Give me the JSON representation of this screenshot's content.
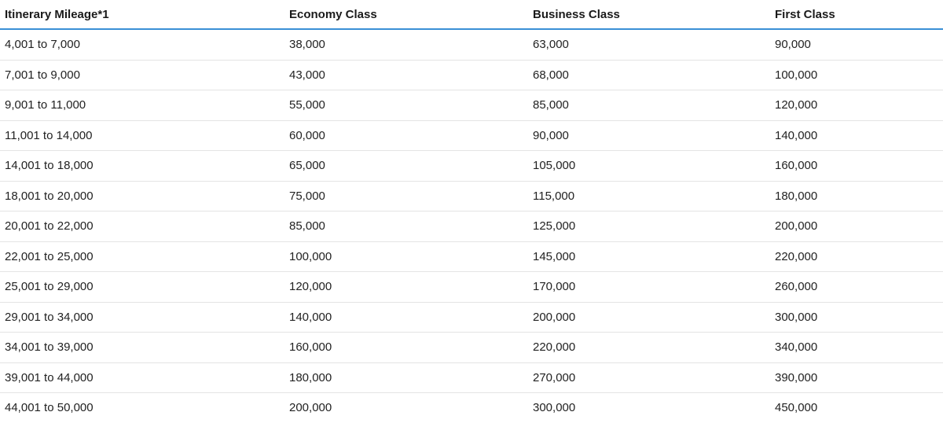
{
  "table": {
    "headers": [
      "Itinerary Mileage*1",
      "Economy Class",
      "Business Class",
      "First Class"
    ],
    "rows": [
      [
        "4,001 to 7,000",
        "38,000",
        "63,000",
        "90,000"
      ],
      [
        "7,001 to 9,000",
        "43,000",
        "68,000",
        "100,000"
      ],
      [
        "9,001 to 11,000",
        "55,000",
        "85,000",
        "120,000"
      ],
      [
        "11,001 to 14,000",
        "60,000",
        "90,000",
        "140,000"
      ],
      [
        "14,001 to 18,000",
        "65,000",
        "105,000",
        "160,000"
      ],
      [
        "18,001 to 20,000",
        "75,000",
        "115,000",
        "180,000"
      ],
      [
        "20,001 to 22,000",
        "85,000",
        "125,000",
        "200,000"
      ],
      [
        "22,001 to 25,000",
        "100,000",
        "145,000",
        "220,000"
      ],
      [
        "25,001 to 29,000",
        "120,000",
        "170,000",
        "260,000"
      ],
      [
        "29,001 to 34,000",
        "140,000",
        "200,000",
        "300,000"
      ],
      [
        "34,001 to 39,000",
        "160,000",
        "220,000",
        "340,000"
      ],
      [
        "39,001 to 44,000",
        "180,000",
        "270,000",
        "390,000"
      ],
      [
        "44,001 to 50,000",
        "200,000",
        "300,000",
        "450,000"
      ]
    ]
  },
  "colors": {
    "header_rule": "#3a8fd6",
    "row_divider": "#e4e4e4"
  }
}
